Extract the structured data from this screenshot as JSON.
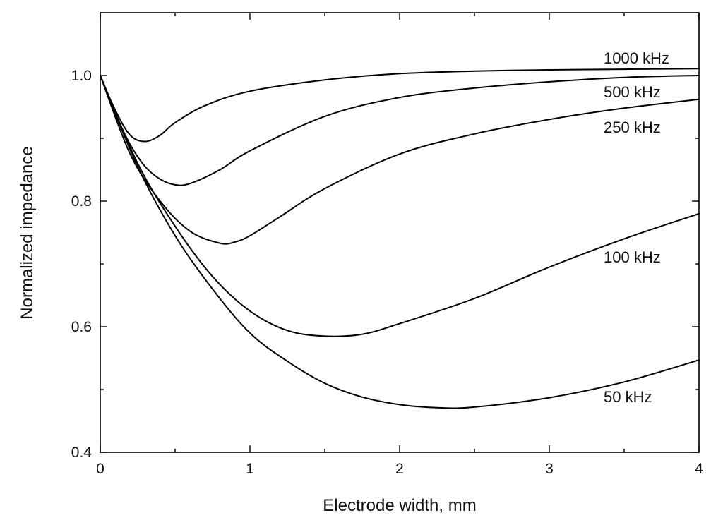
{
  "chart_data": {
    "type": "line",
    "title": "",
    "xlabel": "Electrode width, mm",
    "ylabel": "Normalized impedance",
    "xlim": [
      0,
      4
    ],
    "ylim": [
      0.4,
      1.1
    ],
    "x_ticks": [
      0,
      1,
      2,
      3,
      4
    ],
    "x_tick_labels": [
      "0",
      "1",
      "2",
      "3",
      "4"
    ],
    "y_ticks": [
      0.4,
      0.6,
      0.8,
      1.0
    ],
    "y_tick_labels": [
      "0.4",
      "0.6",
      "0.8",
      "1.0"
    ],
    "grid": false,
    "legend": "inline labels at right end of curves",
    "series": [
      {
        "name": "1000 kHz",
        "x": [
          0,
          0.1,
          0.2,
          0.3,
          0.4,
          0.5,
          0.7,
          1.0,
          1.5,
          2.0,
          2.5,
          3.0,
          3.5,
          4.0
        ],
        "y": [
          1.0,
          0.945,
          0.905,
          0.895,
          0.905,
          0.925,
          0.952,
          0.975,
          0.993,
          1.003,
          1.007,
          1.009,
          1.01,
          1.011
        ]
      },
      {
        "name": "500 kHz",
        "x": [
          0,
          0.1,
          0.2,
          0.3,
          0.4,
          0.5,
          0.6,
          0.8,
          1.0,
          1.5,
          2.0,
          2.5,
          3.0,
          3.5,
          4.0
        ],
        "y": [
          1.0,
          0.94,
          0.89,
          0.855,
          0.835,
          0.826,
          0.828,
          0.85,
          0.88,
          0.935,
          0.965,
          0.98,
          0.99,
          0.997,
          1.0
        ]
      },
      {
        "name": "250 kHz",
        "x": [
          0,
          0.2,
          0.4,
          0.6,
          0.8,
          0.9,
          1.0,
          1.2,
          1.5,
          2.0,
          2.5,
          3.0,
          3.5,
          4.0
        ],
        "y": [
          1.0,
          0.875,
          0.8,
          0.752,
          0.733,
          0.735,
          0.745,
          0.775,
          0.82,
          0.875,
          0.907,
          0.93,
          0.948,
          0.962
        ]
      },
      {
        "name": "100 kHz",
        "x": [
          0,
          0.25,
          0.5,
          0.75,
          1.0,
          1.25,
          1.5,
          1.75,
          2.0,
          2.5,
          3.0,
          3.5,
          4.0
        ],
        "y": [
          1.0,
          0.86,
          0.76,
          0.68,
          0.625,
          0.594,
          0.585,
          0.588,
          0.605,
          0.645,
          0.695,
          0.74,
          0.78
        ]
      },
      {
        "name": "50 kHz",
        "x": [
          0,
          0.25,
          0.5,
          0.75,
          1.0,
          1.25,
          1.5,
          1.75,
          2.0,
          2.25,
          2.5,
          3.0,
          3.5,
          4.0
        ],
        "y": [
          1.0,
          0.855,
          0.745,
          0.66,
          0.59,
          0.545,
          0.51,
          0.488,
          0.476,
          0.471,
          0.472,
          0.487,
          0.512,
          0.547
        ]
      }
    ]
  }
}
